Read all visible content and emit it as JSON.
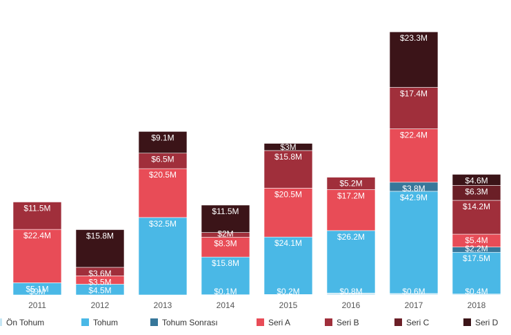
{
  "chart_data": {
    "type": "bar",
    "stacked": true,
    "categories": [
      "2011",
      "2012",
      "2013",
      "2014",
      "2015",
      "2016",
      "2017",
      "2018"
    ],
    "series": [
      {
        "name": "Ön Tohum",
        "color": "#c6e6f4",
        "values": [
          0,
          0,
          0,
          0.1,
          0.2,
          0.8,
          0.6,
          0.4
        ],
        "labels": [
          "$0M",
          "",
          "",
          "$0.1M",
          "$0.2M",
          "$0.8M",
          "$0.6M",
          "$0.4M"
        ]
      },
      {
        "name": "Tohum",
        "color": "#4ab8e6",
        "values": [
          5.1,
          4.5,
          32.5,
          15.8,
          24.1,
          26.2,
          42.9,
          17.5
        ],
        "labels": [
          "$5.1M",
          "$4.5M",
          "$32.5M",
          "$15.8M",
          "$24.1M",
          "$26.2M",
          "$42.9M",
          "$17.5M"
        ]
      },
      {
        "name": "Tohum Sonrası",
        "color": "#37779a",
        "values": [
          0,
          0,
          0,
          0,
          0,
          0,
          3.8,
          2.2
        ],
        "labels": [
          "",
          "",
          "",
          "",
          "",
          "",
          "$3.8M",
          "$2.2M"
        ]
      },
      {
        "name": "Seri A",
        "color": "#e84c57",
        "values": [
          22.4,
          3.5,
          20.5,
          8.3,
          20.5,
          17.2,
          22.4,
          5.4
        ],
        "labels": [
          "$22.4M",
          "$3.5M",
          "$20.5M",
          "$8.3M",
          "$20.5M",
          "$17.2M",
          "$22.4M",
          "$5.4M"
        ]
      },
      {
        "name": "Seri B",
        "color": "#a02f3b",
        "values": [
          11.5,
          3.6,
          6.5,
          2,
          15.8,
          5.2,
          17.4,
          14.2
        ],
        "labels": [
          "$11.5M",
          "$3.6M",
          "$6.5M",
          "$2M",
          "$15.8M",
          "$5.2M",
          "$17.4M",
          "$14.2M"
        ]
      },
      {
        "name": "Seri C",
        "color": "#6b1f27",
        "values": [
          0,
          0,
          0,
          0,
          0,
          0,
          0,
          6.3
        ],
        "labels": [
          "",
          "",
          "",
          "",
          "",
          "",
          "",
          "$6.3M"
        ]
      },
      {
        "name": "Seri D",
        "color": "#3b1418",
        "values": [
          0,
          15.8,
          9.1,
          11.5,
          3,
          0,
          23.3,
          4.6
        ],
        "labels": [
          "",
          "$15.8M",
          "$9.1M",
          "$11.5M",
          "$3M",
          "",
          "$23.3M",
          "$4.6M"
        ]
      }
    ],
    "title": "",
    "xlabel": "",
    "ylabel": "",
    "ylim": [
      0,
      116
    ],
    "grid": false,
    "legend": "bottom"
  }
}
